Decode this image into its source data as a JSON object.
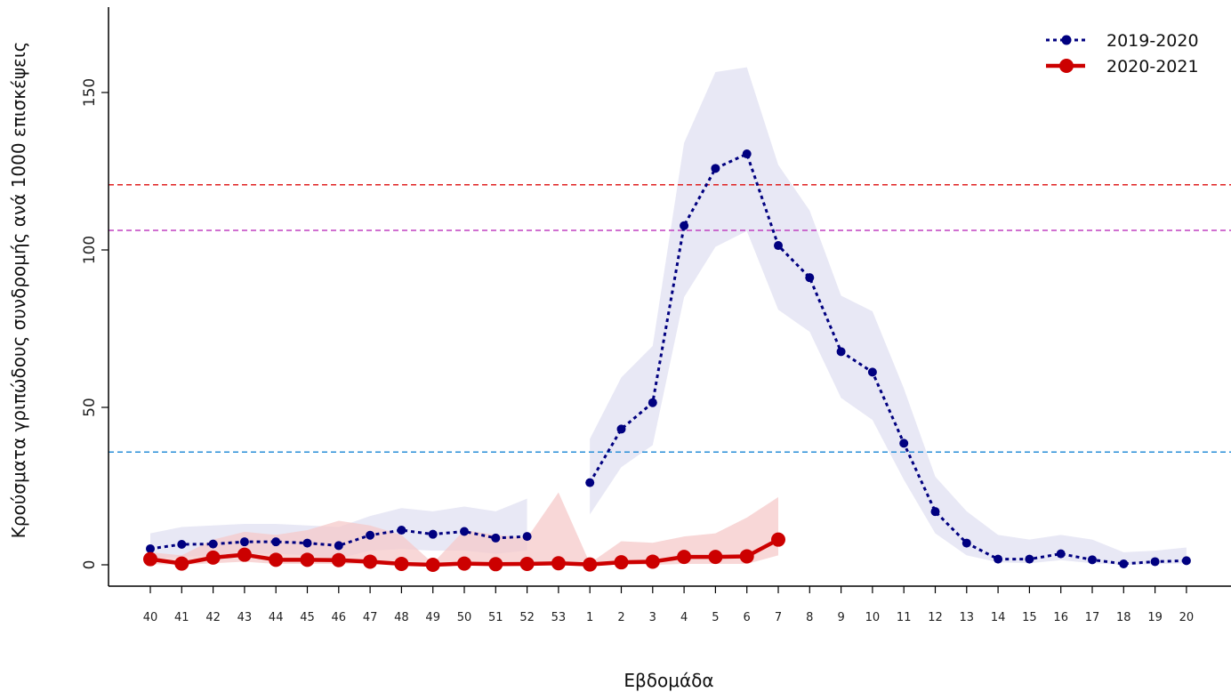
{
  "chart_data": {
    "type": "line",
    "xlabel": "Εβδομάδα",
    "ylabel": "Κρούσματα γριπώδους συνδρομής ανά 1000 επισκέψεις",
    "categories": [
      "40",
      "41",
      "42",
      "43",
      "44",
      "45",
      "46",
      "47",
      "48",
      "49",
      "50",
      "51",
      "52",
      "53",
      "1",
      "2",
      "3",
      "4",
      "5",
      "6",
      "7",
      "8",
      "9",
      "10",
      "11",
      "12",
      "13",
      "14",
      "15",
      "16",
      "17",
      "18",
      "19",
      "20"
    ],
    "ylim": [
      0,
      175
    ],
    "yticks": [
      0,
      50,
      100,
      150
    ],
    "grid": false,
    "legend_position": "top-right",
    "thresholds": [
      {
        "value": 120.7,
        "color": "#e02020"
      },
      {
        "value": 106.2,
        "color": "#c040c0"
      },
      {
        "value": 35.8,
        "color": "#2a8fd8"
      }
    ],
    "series": [
      {
        "name": "2019-2020",
        "color": "#000080",
        "band_color": "#e6e6f4",
        "values": [
          5.1,
          6.5,
          6.6,
          7.3,
          7.3,
          6.9,
          6.1,
          9.4,
          11.0,
          9.7,
          10.6,
          8.5,
          9.0,
          null,
          26.1,
          43.1,
          51.5,
          107.7,
          125.9,
          130.5,
          101.4,
          91.2,
          67.7,
          61.2,
          38.6,
          16.9,
          6.9,
          1.8,
          1.8,
          3.5,
          1.6,
          0.3,
          1.0,
          1.3
        ],
        "band_lower": [
          2.0,
          2.5,
          3.0,
          3.5,
          3.5,
          3.0,
          2.0,
          4.5,
          5.0,
          4.5,
          4.5,
          3.5,
          4.5,
          null,
          16.0,
          31.0,
          38.0,
          85.0,
          101.0,
          106.0,
          81.0,
          74.0,
          53.0,
          46.0,
          27.0,
          10.0,
          3.0,
          0.8,
          0.5,
          1.5,
          0.5,
          0.0,
          0.2,
          0.5
        ],
        "band_upper": [
          10.0,
          12.0,
          12.5,
          13.0,
          13.0,
          12.5,
          12.0,
          15.5,
          18.0,
          17.0,
          18.5,
          17.0,
          21.0,
          null,
          40.0,
          59.5,
          69.5,
          134.0,
          156.5,
          158.0,
          127.0,
          112.5,
          85.5,
          80.5,
          56.0,
          28.0,
          17.0,
          9.5,
          8.0,
          9.5,
          8.0,
          4.0,
          4.5,
          5.5
        ]
      },
      {
        "name": "2020-2021",
        "color": "#cc0000",
        "band_color": "#f5c9c9",
        "values": [
          1.8,
          0.4,
          2.3,
          3.2,
          1.6,
          1.6,
          1.5,
          1.0,
          0.3,
          0.0,
          0.4,
          0.2,
          0.3,
          0.5,
          0.1,
          0.8,
          1.0,
          2.5,
          2.5,
          2.7,
          8.0,
          null,
          null,
          null,
          null,
          null,
          null,
          null,
          null,
          null,
          null,
          null,
          null,
          null
        ],
        "band_lower": [
          0.2,
          0.0,
          0.5,
          1.0,
          0.3,
          0.3,
          0.3,
          0.2,
          0.0,
          0.0,
          0.0,
          0.0,
          0.0,
          0.0,
          0.0,
          0.0,
          0.0,
          0.3,
          0.3,
          0.3,
          3.0,
          null,
          null,
          null,
          null,
          null,
          null,
          null,
          null,
          null,
          null,
          null,
          null,
          null
        ],
        "band_upper": [
          4.0,
          3.0,
          8.0,
          10.5,
          9.5,
          11.0,
          14.0,
          12.5,
          9.5,
          0.5,
          11.0,
          9.5,
          8.5,
          23.0,
          0.5,
          7.5,
          7.0,
          9.0,
          10.0,
          15.0,
          21.5,
          null,
          null,
          null,
          null,
          null,
          null,
          null,
          null,
          null,
          null,
          null,
          null,
          null
        ]
      }
    ]
  }
}
